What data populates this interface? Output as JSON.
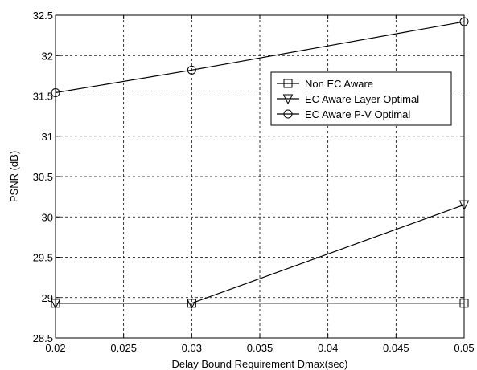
{
  "chart_data": {
    "type": "line",
    "title": "",
    "xlabel": "Delay Bound Requirement Dmax(sec)",
    "ylabel": "PSNR (dB)",
    "xlim": [
      0.02,
      0.05
    ],
    "ylim": [
      28.5,
      32.5
    ],
    "xticks": [
      0.02,
      0.025,
      0.03,
      0.035,
      0.04,
      0.045,
      0.05
    ],
    "xtick_labels": [
      "0.02",
      "0.025",
      "0.03",
      "0.035",
      "0.04",
      "0.045",
      "0.05"
    ],
    "yticks": [
      28.5,
      29,
      29.5,
      30,
      30.5,
      31,
      31.5,
      32,
      32.5
    ],
    "ytick_labels": [
      "28.5",
      "29",
      "29.5",
      "30",
      "30.5",
      "31",
      "31.5",
      "32",
      "32.5"
    ],
    "grid": true,
    "legend_position": "upper-right",
    "series": [
      {
        "name": "Non EC Aware",
        "marker": "square",
        "x": [
          0.02,
          0.03,
          0.05
        ],
        "y": [
          28.93,
          28.93,
          28.93
        ]
      },
      {
        "name": "EC Aware Layer Optimal",
        "marker": "triangle-down",
        "x": [
          0.02,
          0.03,
          0.05
        ],
        "y": [
          28.93,
          28.93,
          30.15
        ]
      },
      {
        "name": "EC Aware P-V Optimal",
        "marker": "circle",
        "x": [
          0.02,
          0.03,
          0.05
        ],
        "y": [
          31.54,
          31.82,
          32.42
        ]
      }
    ],
    "colors": {
      "line": "#000000",
      "grid": "#000000",
      "background": "#ffffff"
    }
  }
}
